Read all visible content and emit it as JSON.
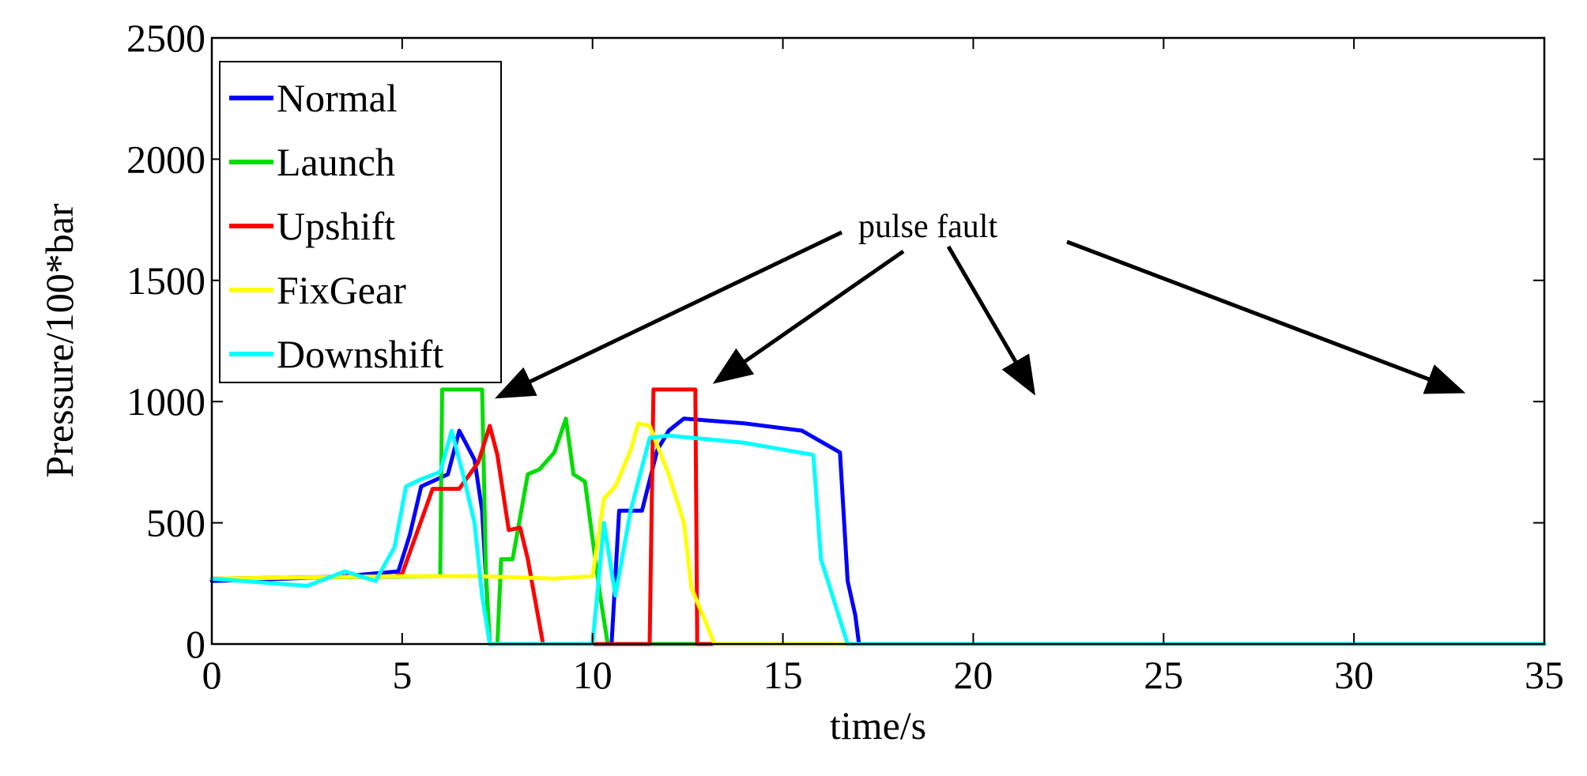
{
  "chart_data": {
    "type": "line",
    "title": "",
    "xlabel": "time/s",
    "ylabel": "Pressure/100*bar",
    "xlim": [
      0,
      35
    ],
    "ylim": [
      0,
      2500
    ],
    "xticks": [
      0,
      5,
      10,
      15,
      20,
      25,
      30,
      35
    ],
    "yticks": [
      0,
      500,
      1000,
      1500,
      2000,
      2500
    ],
    "grid": false,
    "legend_position": "top-left",
    "series": [
      {
        "name": "Normal",
        "color": "#0000ff",
        "x": [
          0,
          2,
          3.5,
          4.9,
          5.2,
          5.5,
          6.2,
          6.5,
          6.9,
          7.1,
          7.3,
          10.5,
          10.7,
          11.3,
          11.7,
          12,
          12.4,
          14,
          15.5,
          16.5,
          16.7,
          16.9,
          17,
          35
        ],
        "y": [
          260,
          270,
          280,
          300,
          450,
          650,
          700,
          880,
          760,
          550,
          0,
          0,
          550,
          550,
          800,
          880,
          930,
          910,
          880,
          790,
          260,
          120,
          0,
          0
        ]
      },
      {
        "name": "Launch",
        "color": "#00dd00",
        "x": [
          0,
          5.9,
          6,
          6.05,
          7.1,
          7.2,
          7.3,
          7.5,
          7.6,
          7.9,
          8.3,
          8.6,
          9,
          9.3,
          9.5,
          9.8,
          10.2,
          10.4,
          10.5,
          35
        ],
        "y": [
          270,
          280,
          280,
          1050,
          1050,
          300,
          0,
          0,
          350,
          350,
          700,
          720,
          790,
          930,
          700,
          670,
          200,
          0,
          0,
          0
        ]
      },
      {
        "name": "Upshift",
        "color": "#ff0000",
        "x": [
          0,
          4.8,
          5,
          5.8,
          6.5,
          7,
          7.3,
          7.5,
          7.8,
          8.1,
          8.3,
          8.7,
          8.8,
          10.5,
          11.5,
          11.6,
          12.7,
          12.75,
          13,
          35
        ],
        "y": [
          270,
          280,
          290,
          640,
          640,
          750,
          900,
          780,
          470,
          480,
          350,
          0,
          0,
          0,
          0,
          1050,
          1050,
          0,
          0,
          0
        ]
      },
      {
        "name": "FixGear",
        "color": "#ffff00",
        "x": [
          0,
          5,
          7,
          9,
          10,
          10.3,
          10.6,
          11,
          11.2,
          11.5,
          12,
          12.4,
          12.6,
          13,
          13.2,
          35
        ],
        "y": [
          270,
          280,
          280,
          270,
          280,
          600,
          650,
          800,
          910,
          900,
          700,
          500,
          230,
          80,
          0,
          0
        ]
      },
      {
        "name": "Downshift",
        "color": "#00ffff",
        "x": [
          0,
          2.5,
          3.5,
          4.3,
          4.8,
          5.1,
          5.5,
          6,
          6.3,
          6.6,
          6.9,
          7.1,
          7.3,
          7.5,
          10,
          10.3,
          10.6,
          11,
          11.5,
          12,
          14,
          15.8,
          16,
          16.2,
          16.7,
          35
        ],
        "y": [
          270,
          240,
          300,
          260,
          400,
          650,
          680,
          710,
          880,
          700,
          500,
          200,
          0,
          0,
          0,
          500,
          200,
          550,
          850,
          860,
          830,
          780,
          350,
          250,
          0,
          0
        ]
      }
    ],
    "annotations": [
      {
        "text": "pulse fault"
      }
    ]
  }
}
